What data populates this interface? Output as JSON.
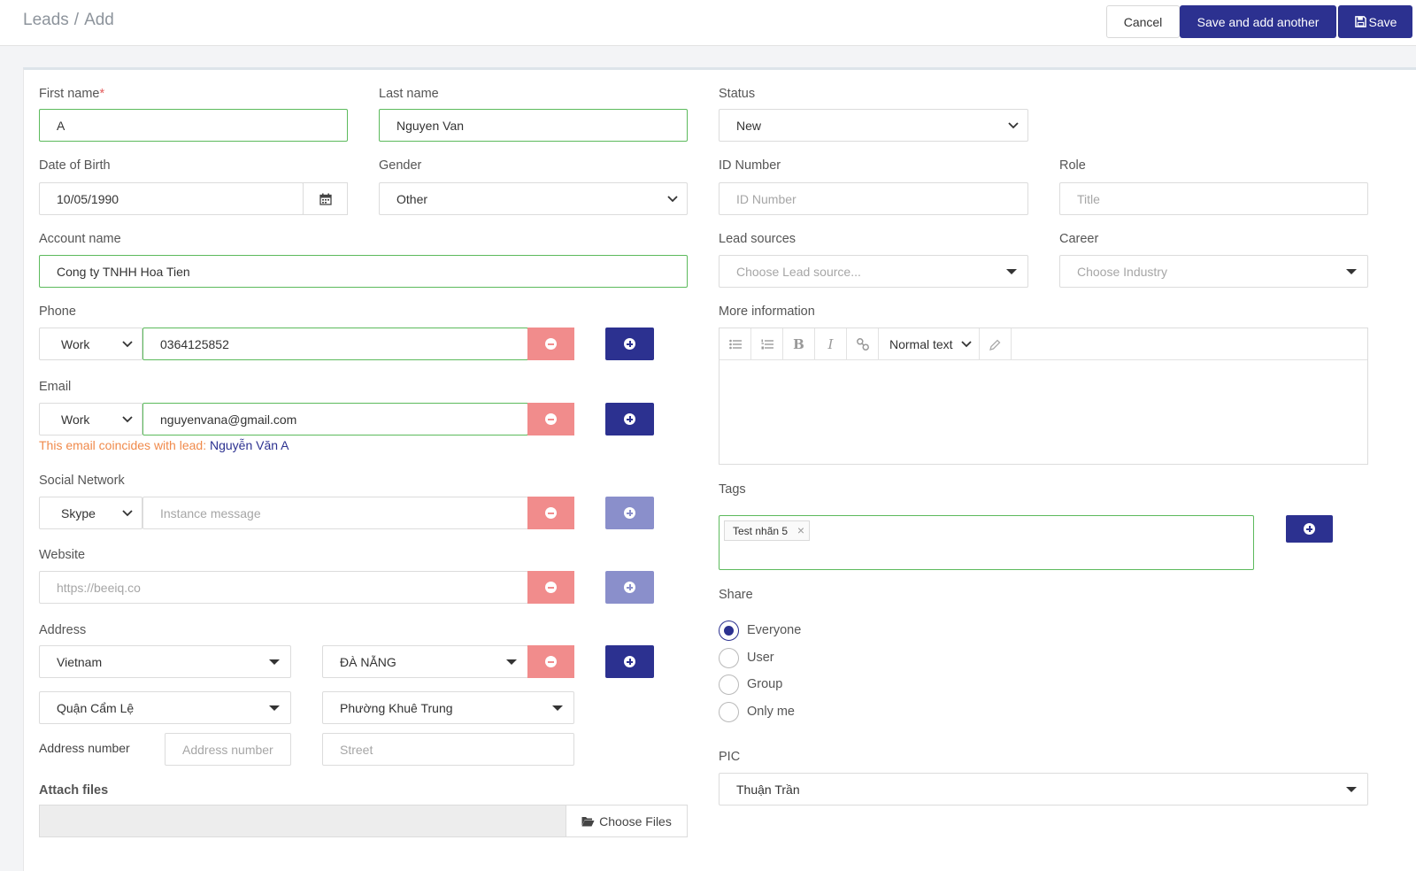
{
  "breadcrumb": {
    "root": "Leads",
    "separator": "/",
    "current": "Add"
  },
  "actions": {
    "cancel": "Cancel",
    "save_and_add_another": "Save and add another",
    "save": "Save"
  },
  "form": {
    "first_name": {
      "label": "First name",
      "required_mark": "*",
      "value": "A"
    },
    "last_name": {
      "label": "Last name",
      "value": "Nguyen Van"
    },
    "status": {
      "label": "Status",
      "value": "New"
    },
    "dob": {
      "label": "Date of Birth",
      "value": "10/05/1990"
    },
    "gender": {
      "label": "Gender",
      "value": "Other"
    },
    "id_number": {
      "label": "ID Number",
      "placeholder": "ID Number"
    },
    "role": {
      "label": "Role",
      "placeholder": "Title"
    },
    "account_name": {
      "label": "Account name",
      "value": "Cong ty TNHH Hoa Tien"
    },
    "lead_sources": {
      "label": "Lead sources",
      "placeholder": "Choose Lead source..."
    },
    "career": {
      "label": "Career",
      "placeholder": "Choose Industry"
    },
    "phone": {
      "label": "Phone",
      "type": "Work",
      "value": "0364125852"
    },
    "email": {
      "label": "Email",
      "type": "Work",
      "value": "nguyenvana@gmail.com",
      "warning": "This email coincides with lead:",
      "warning_lead": "Nguyễn Văn A"
    },
    "social": {
      "label": "Social Network",
      "type": "Skype",
      "placeholder": "Instance message"
    },
    "website": {
      "label": "Website",
      "placeholder": "https://beeiq.co"
    },
    "address": {
      "label": "Address",
      "country": "Vietnam",
      "city": "ĐÀ NẴNG",
      "district": "Quận Cẩm Lệ",
      "ward": "Phường Khuê Trung",
      "number_label": "Address number",
      "number_placeholder": "Address number",
      "street_placeholder": "Street"
    },
    "attach": {
      "label": "Attach files",
      "button": "Choose Files"
    },
    "more_info": {
      "label": "More information",
      "text_style": "Normal text"
    },
    "tags": {
      "label": "Tags",
      "items": [
        "Test nhãn 5"
      ],
      "remove": "×"
    },
    "share": {
      "label": "Share",
      "options": [
        "Everyone",
        "User",
        "Group",
        "Only me"
      ],
      "selected": "Everyone"
    },
    "pic": {
      "label": "PIC",
      "value": "Thuận Trần"
    }
  },
  "colors": {
    "primary": "#2c3190",
    "danger": "#f18c8c",
    "valid_border": "#5cba5c",
    "warning": "#f08a4b"
  }
}
